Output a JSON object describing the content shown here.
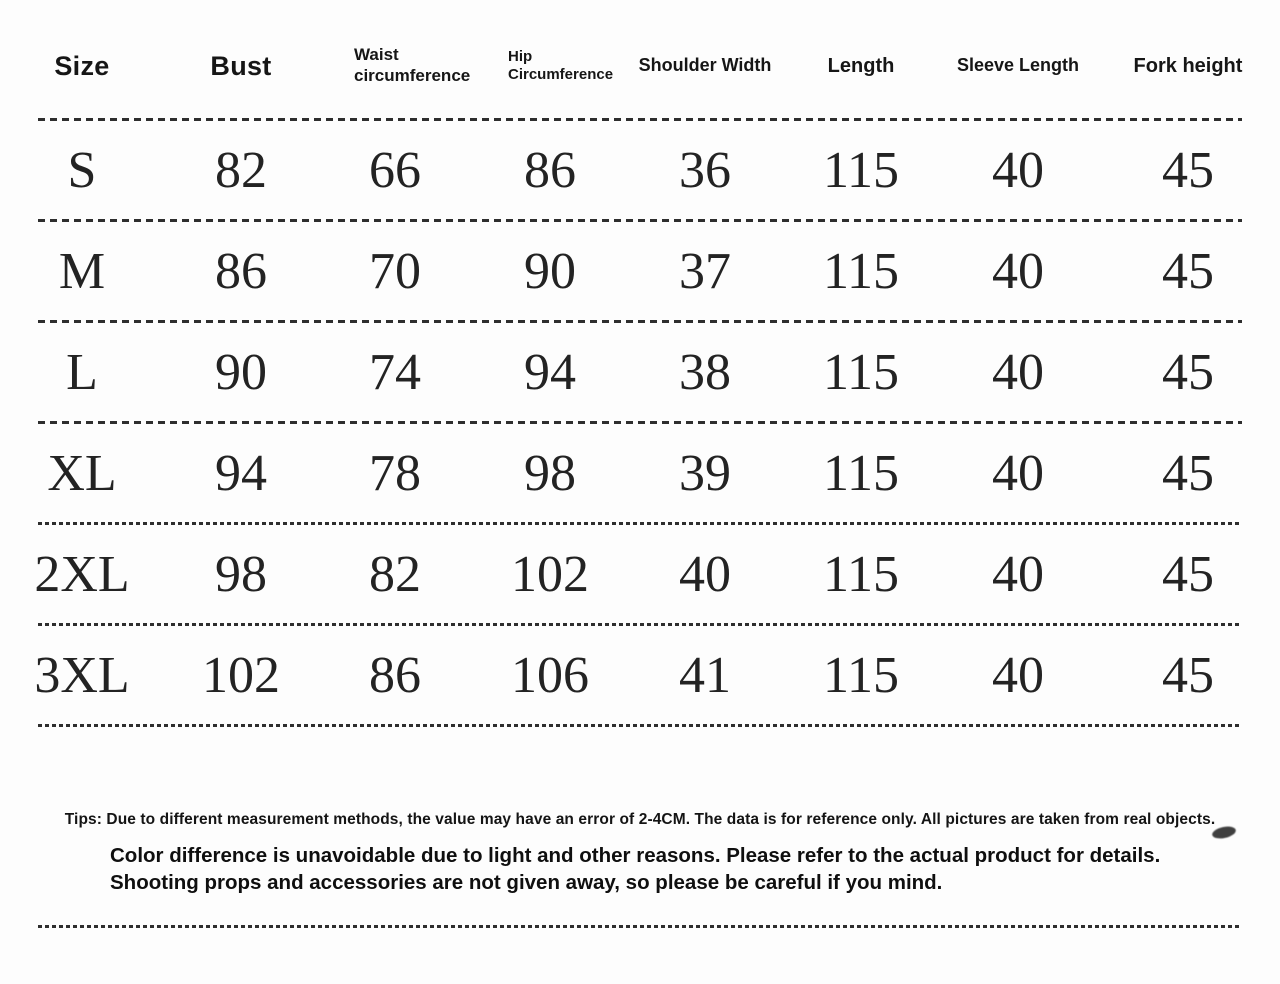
{
  "table": {
    "headers": [
      {
        "label": "Size"
      },
      {
        "label": "Bust"
      },
      {
        "label": "Waist\ncircumference"
      },
      {
        "label": "Hip\nCircumference"
      },
      {
        "label": "Shoulder Width"
      },
      {
        "label": "Length"
      },
      {
        "label": "Sleeve Length"
      },
      {
        "label": "Fork height"
      }
    ],
    "rows": [
      {
        "values": [
          "S",
          "82",
          "66",
          "86",
          "36",
          "115",
          "40",
          "45"
        ]
      },
      {
        "values": [
          "M",
          "86",
          "70",
          "90",
          "37",
          "115",
          "40",
          "45"
        ]
      },
      {
        "values": [
          "L",
          "90",
          "74",
          "94",
          "38",
          "115",
          "40",
          "45"
        ]
      },
      {
        "values": [
          "XL",
          "94",
          "78",
          "98",
          "39",
          "115",
          "40",
          "45"
        ]
      },
      {
        "values": [
          "2XL",
          "98",
          "82",
          "102",
          "40",
          "115",
          "40",
          "45"
        ]
      },
      {
        "values": [
          "3XL",
          "102",
          "86",
          "106",
          "41",
          "115",
          "40",
          "45"
        ]
      }
    ]
  },
  "notes": {
    "tips": "Tips: Due to different measurement methods, the value may have an error of 2-4CM. The data is for reference only. All pictures are taken from real objects.",
    "disclaimer": "Color difference is unavoidable due to light and other reasons. Please refer to the actual product for details. Shooting props and accessories are not given away, so please be careful if you mind."
  },
  "colors": {
    "background": "#fdfdfd",
    "text": "#1c1c1c",
    "divider": "#2e2e2e"
  }
}
